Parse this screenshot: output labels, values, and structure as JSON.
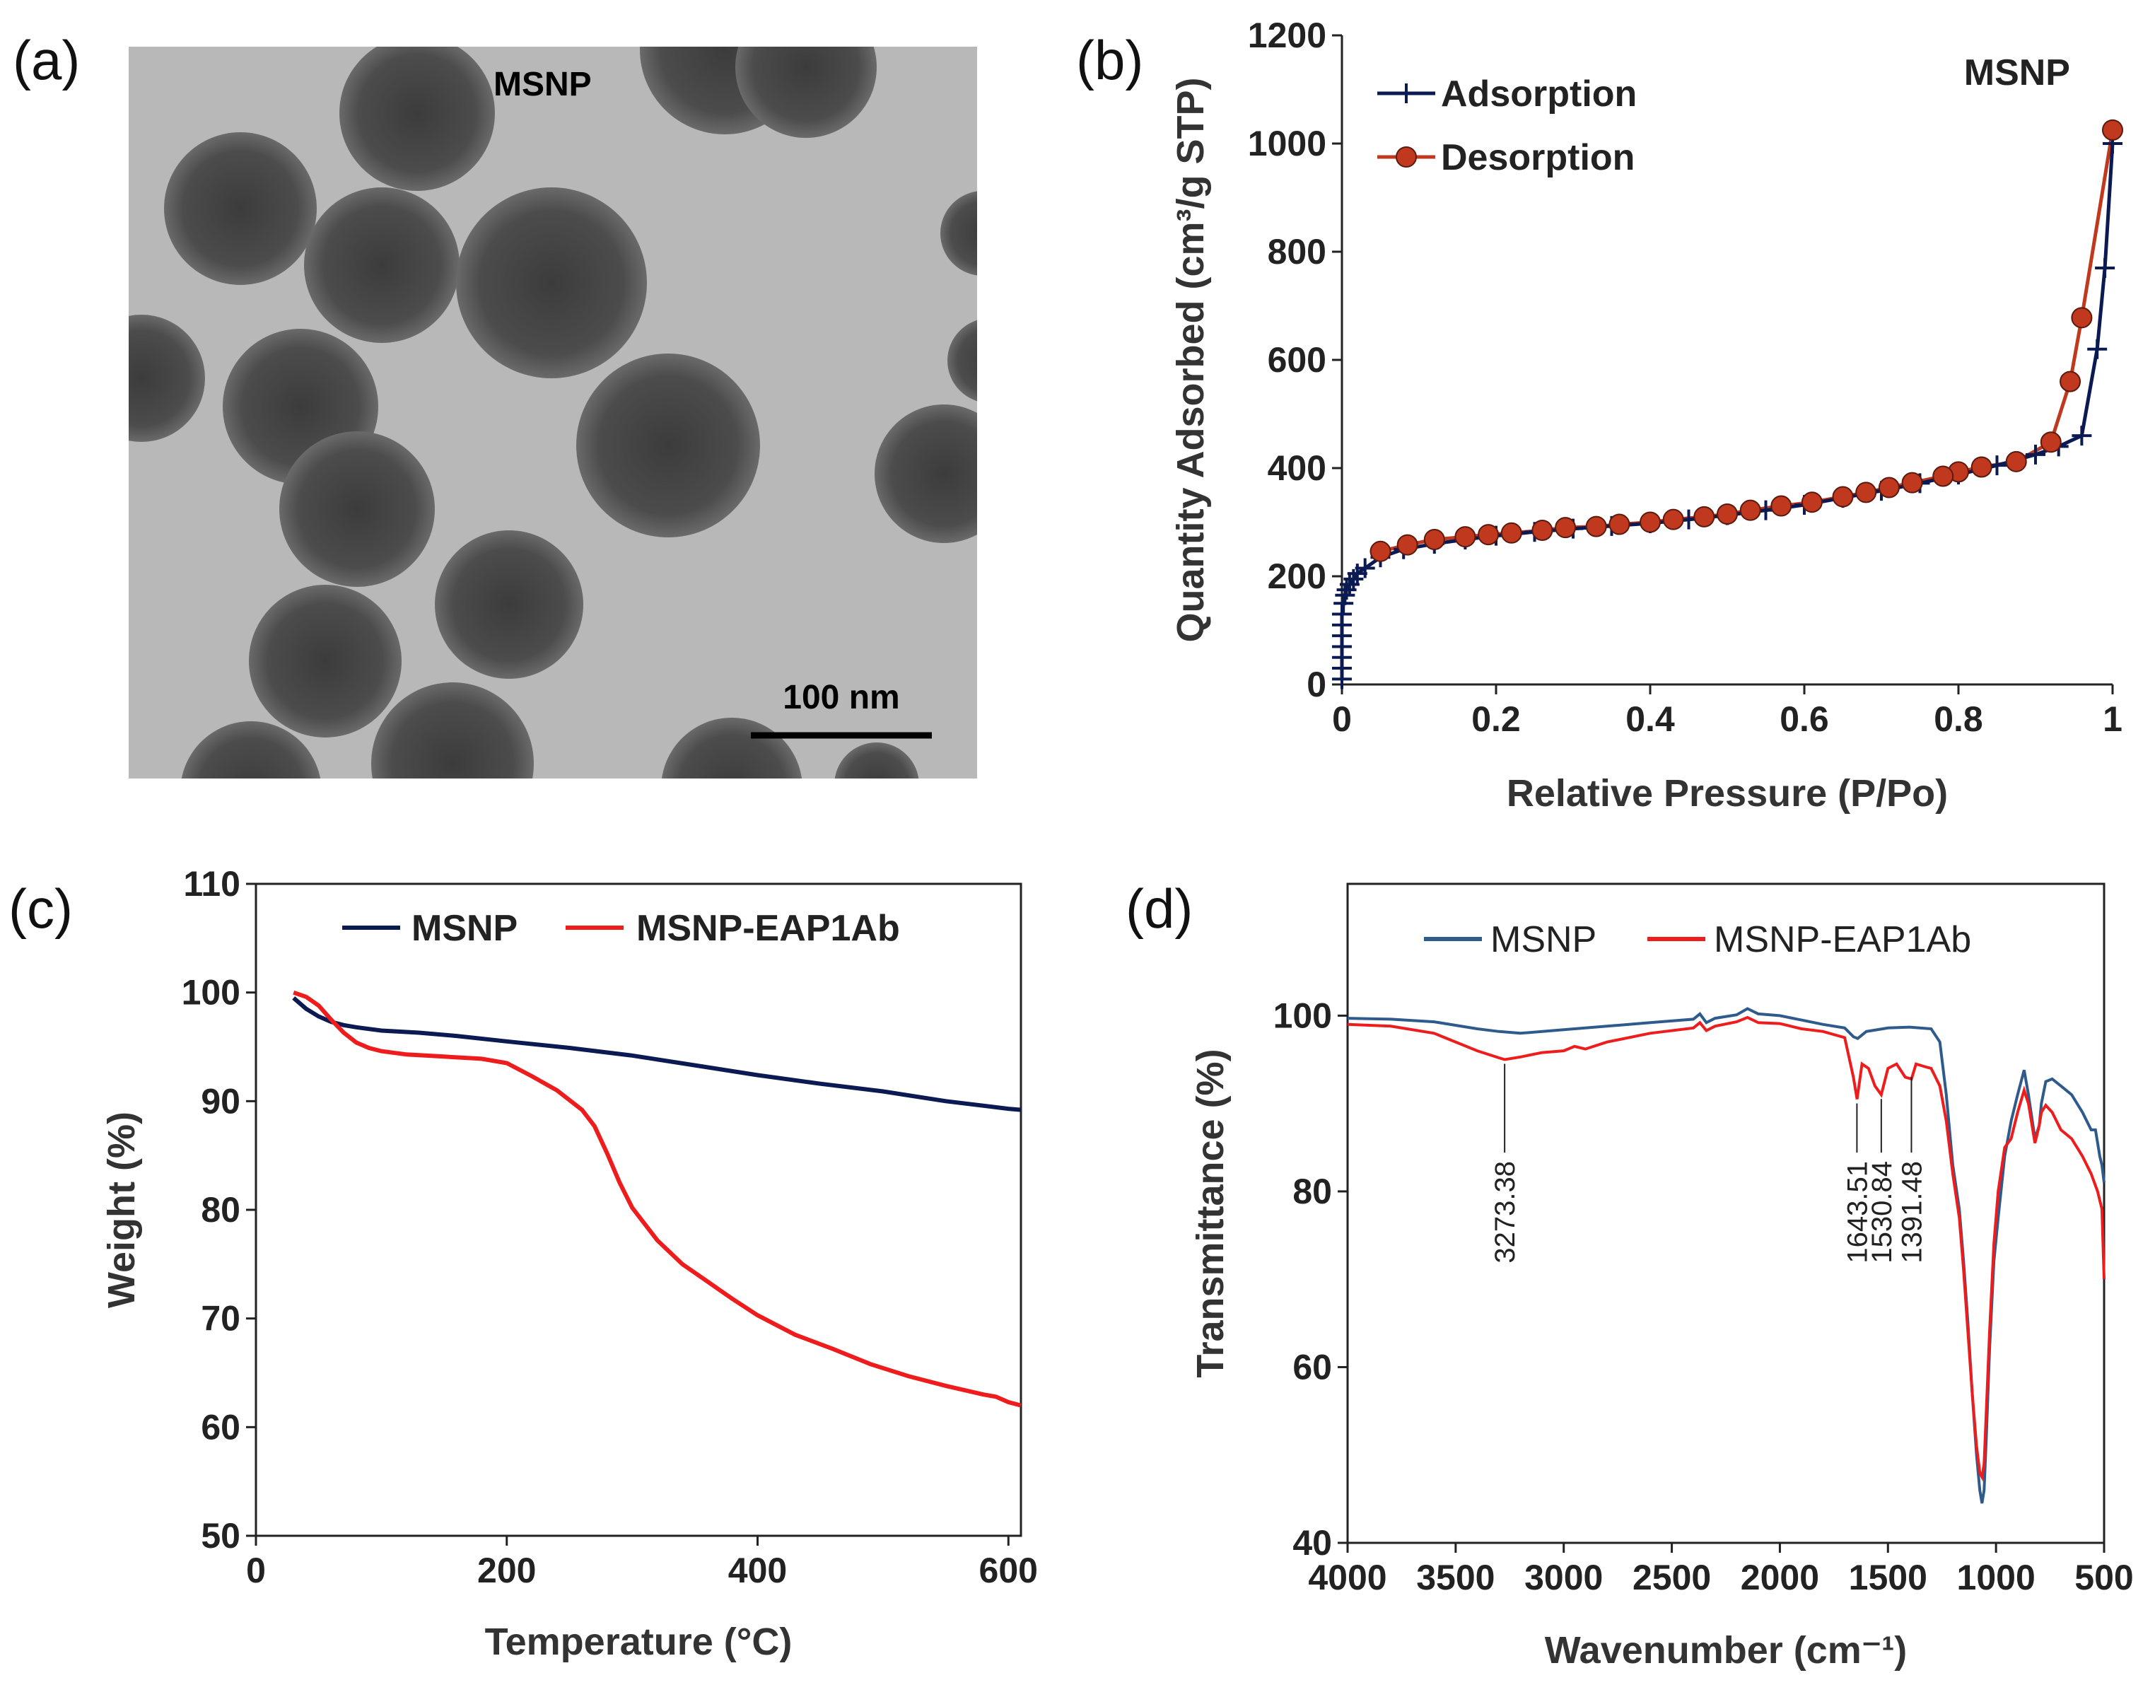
{
  "panels": {
    "a": {
      "label": "(a)",
      "image_title": "MSNP",
      "scale_bar_label": "100 nm"
    },
    "b": {
      "label": "(b)"
    },
    "c": {
      "label": "(c)"
    },
    "d": {
      "label": "(d)"
    }
  },
  "colors": {
    "navy": "#0b1a52",
    "red": "#ee1c1c",
    "ftir_blue": "#2f5a8c",
    "marker_red": "#c0391f",
    "tem_background": "#b8b8b8",
    "particle": "#4a4a4a"
  },
  "chart_data": [
    {
      "id": "b",
      "type": "line",
      "title": "MSNP",
      "xlabel": "Relative Pressure (P/Po)",
      "ylabel": "Quantity Adsorbed (cm³/g STP)",
      "xlim": [
        0,
        1
      ],
      "ylim": [
        0,
        1200
      ],
      "xticks": [
        0,
        0.2,
        0.4,
        0.6,
        0.8,
        1
      ],
      "xtick_labels": [
        "0",
        "0.2",
        "0.4",
        "0.6",
        "0.8",
        "1"
      ],
      "yticks": [
        0,
        200,
        400,
        600,
        800,
        1000,
        1200
      ],
      "legend_position": "top-left",
      "series": [
        {
          "name": "Adsorption",
          "color": "#0b1a52",
          "marker": "plus",
          "x": [
            0.0,
            0.0,
            0.0,
            0.0,
            0.0,
            0.0,
            0.0,
            0.002,
            0.004,
            0.006,
            0.01,
            0.015,
            0.02,
            0.03,
            0.05,
            0.08,
            0.12,
            0.16,
            0.2,
            0.25,
            0.3,
            0.35,
            0.4,
            0.45,
            0.5,
            0.55,
            0.6,
            0.65,
            0.7,
            0.75,
            0.8,
            0.85,
            0.9,
            0.93,
            0.96,
            0.98,
            0.99,
            1.0
          ],
          "y": [
            10,
            30,
            50,
            70,
            90,
            110,
            130,
            150,
            165,
            175,
            185,
            195,
            205,
            215,
            235,
            250,
            260,
            268,
            275,
            282,
            288,
            293,
            298,
            305,
            313,
            322,
            332,
            345,
            358,
            372,
            388,
            405,
            425,
            440,
            460,
            620,
            770,
            1000
          ]
        },
        {
          "name": "Desorption",
          "color": "#c0391f",
          "marker": "circle",
          "x": [
            1.0,
            0.96,
            0.945,
            0.92,
            0.875,
            0.83,
            0.8,
            0.78,
            0.74,
            0.71,
            0.68,
            0.65,
            0.61,
            0.57,
            0.53,
            0.5,
            0.47,
            0.43,
            0.4,
            0.36,
            0.33,
            0.29,
            0.26,
            0.22,
            0.19,
            0.16,
            0.12,
            0.085,
            0.05
          ],
          "y": [
            1025,
            678,
            560,
            448,
            412,
            402,
            393,
            385,
            373,
            364,
            355,
            347,
            337,
            330,
            322,
            315,
            310,
            305,
            300,
            296,
            292,
            290,
            285,
            280,
            277,
            273,
            268,
            258,
            246
          ]
        }
      ]
    },
    {
      "id": "c",
      "type": "line",
      "title": "",
      "xlabel": "Temperature (°C)",
      "ylabel": "Weight (%)",
      "xlim": [
        0,
        610
      ],
      "ylim": [
        50,
        110
      ],
      "xticks": [
        0,
        200,
        400,
        600
      ],
      "yticks": [
        50,
        60,
        70,
        80,
        90,
        100,
        110
      ],
      "legend_position": "top",
      "series": [
        {
          "name": "MSNP",
          "color": "#0b1a52",
          "x": [
            30,
            40,
            50,
            60,
            70,
            80,
            100,
            130,
            160,
            200,
            250,
            300,
            350,
            400,
            450,
            500,
            550,
            600,
            610
          ],
          "y": [
            99.5,
            98.5,
            97.8,
            97.3,
            97.0,
            96.8,
            96.5,
            96.3,
            96.0,
            95.5,
            94.9,
            94.2,
            93.3,
            92.4,
            91.6,
            90.9,
            90.0,
            89.3,
            89.2
          ]
        },
        {
          "name": "MSNP-EAP1Ab",
          "color": "#ee1c1c",
          "x": [
            30,
            40,
            50,
            60,
            70,
            80,
            90,
            100,
            120,
            150,
            180,
            200,
            220,
            240,
            260,
            270,
            280,
            290,
            300,
            320,
            340,
            360,
            380,
            400,
            430,
            460,
            490,
            520,
            550,
            580,
            590,
            600,
            610
          ],
          "y": [
            100,
            99.6,
            98.8,
            97.5,
            96.3,
            95.4,
            94.9,
            94.6,
            94.3,
            94.1,
            93.9,
            93.5,
            92.3,
            91.0,
            89.2,
            87.7,
            85.2,
            82.5,
            80.2,
            77.2,
            75.0,
            73.4,
            71.8,
            70.3,
            68.5,
            67.2,
            65.8,
            64.7,
            63.8,
            63.0,
            62.8,
            62.3,
            62.0
          ]
        }
      ]
    },
    {
      "id": "d",
      "type": "line",
      "title": "",
      "xlabel": "Wavenumber (cm⁻¹)",
      "ylabel": "Transmittance  (%)",
      "xlim": [
        4000,
        500
      ],
      "ylim": [
        40,
        115
      ],
      "xticks": [
        4000,
        3500,
        3000,
        2500,
        2000,
        1500,
        1000,
        500
      ],
      "yticks": [
        40,
        60,
        80,
        100
      ],
      "legend_position": "top",
      "annotations": [
        {
          "text": "3273.38",
          "x": 3273.38,
          "y": 95
        },
        {
          "text": "1643.51",
          "x": 1643.51,
          "y": 90.5
        },
        {
          "text": "1530.84",
          "x": 1530.84,
          "y": 91
        },
        {
          "text": "1391.48",
          "x": 1391.48,
          "y": 93.5
        }
      ],
      "series": [
        {
          "name": "MSNP",
          "color": "#2f5a8c",
          "x": [
            4000,
            3800,
            3600,
            3400,
            3300,
            3200,
            3000,
            2800,
            2600,
            2400,
            2370,
            2340,
            2300,
            2200,
            2150,
            2100,
            2000,
            1900,
            1800,
            1700,
            1660,
            1640,
            1600,
            1500,
            1400,
            1300,
            1260,
            1230,
            1200,
            1170,
            1150,
            1130,
            1110,
            1090,
            1075,
            1065,
            1055,
            1045,
            1030,
            1010,
            990,
            960,
            930,
            900,
            870,
            850,
            820,
            800,
            790,
            770,
            740,
            700,
            650,
            600,
            560,
            540,
            520,
            510,
            500
          ],
          "y": [
            99.7,
            99.6,
            99.3,
            98.5,
            98.2,
            98.0,
            98.4,
            98.8,
            99.2,
            99.6,
            100.2,
            99.2,
            99.7,
            100.1,
            100.8,
            100.2,
            100.0,
            99.5,
            99.0,
            98.6,
            97.6,
            97.4,
            98.2,
            98.6,
            98.7,
            98.5,
            97.0,
            91.0,
            83.0,
            78.0,
            72.0,
            65.0,
            57.0,
            50.0,
            46.0,
            44.5,
            46.0,
            52.0,
            62.0,
            72.0,
            77.0,
            84.0,
            88.0,
            91.0,
            93.8,
            91.0,
            86.0,
            87.5,
            90.0,
            92.5,
            92.8,
            92.0,
            91.0,
            89.0,
            87.0,
            87.0,
            84.0,
            83.0,
            81.0
          ]
        },
        {
          "name": "MSNP-EAP1Ab",
          "color": "#ee1c1c",
          "x": [
            4000,
            3800,
            3600,
            3400,
            3300,
            3273,
            3200,
            3100,
            3000,
            2950,
            2900,
            2800,
            2600,
            2400,
            2370,
            2340,
            2300,
            2200,
            2150,
            2100,
            2000,
            1900,
            1800,
            1700,
            1660,
            1643,
            1620,
            1590,
            1560,
            1531,
            1500,
            1460,
            1420,
            1391,
            1370,
            1330,
            1300,
            1260,
            1230,
            1200,
            1170,
            1150,
            1130,
            1110,
            1090,
            1075,
            1065,
            1055,
            1045,
            1030,
            1010,
            990,
            960,
            930,
            900,
            870,
            850,
            820,
            800,
            790,
            770,
            740,
            700,
            650,
            600,
            560,
            530,
            510,
            500
          ],
          "y": [
            99.0,
            98.8,
            98.0,
            96.0,
            95.2,
            95.0,
            95.3,
            95.8,
            96.0,
            96.5,
            96.2,
            97.0,
            98.0,
            98.6,
            99.2,
            98.3,
            98.8,
            99.3,
            99.8,
            99.2,
            99.1,
            98.5,
            98.2,
            97.5,
            93.0,
            90.5,
            94.5,
            94.0,
            92.0,
            91.0,
            94.0,
            94.5,
            93.0,
            92.8,
            94.5,
            94.2,
            94.0,
            92.0,
            88.0,
            82.0,
            77.0,
            71.0,
            64.0,
            57.0,
            51.0,
            48.0,
            47.5,
            49.0,
            55.0,
            64.0,
            74.0,
            80.0,
            85.0,
            86.0,
            89.0,
            91.5,
            90.0,
            85.5,
            87.5,
            89.0,
            89.8,
            89.0,
            87.0,
            86.0,
            84.0,
            82.0,
            80.0,
            78.0,
            70.0
          ]
        }
      ]
    }
  ]
}
